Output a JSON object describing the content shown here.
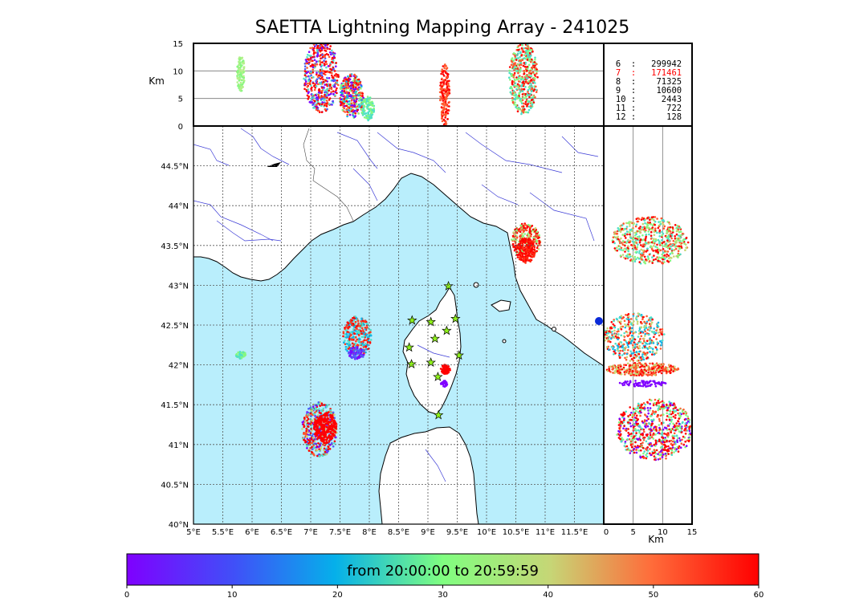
{
  "title": "SAETTA Lightning Mapping Array - 241025",
  "map": {
    "lon_ticks": [
      "5°E",
      "5.5°E",
      "6°E",
      "6.5°E",
      "7°E",
      "7.5°E",
      "8°E",
      "8.5°E",
      "9°E",
      "9.5°E",
      "10°E",
      "10.5°E",
      "11°E",
      "11.5°E"
    ],
    "lat_ticks": [
      "40°N",
      "40.5°N",
      "41°N",
      "41.5°N",
      "42°N",
      "42.5°N",
      "43°N",
      "43.5°N",
      "44°N",
      "44.5°N"
    ],
    "lon_range": [
      5,
      12
    ],
    "lat_range": [
      40,
      45
    ],
    "colors": {
      "sea": "#b9eefc",
      "land": "#ffffff",
      "rivers": "#3b3bd6",
      "coast": "#000000",
      "station": "#8ff21a"
    },
    "stations_icon": "star-icon"
  },
  "top_panel": {
    "ylabel": "Km",
    "yticks": [
      "0",
      "5",
      "10",
      "15"
    ],
    "yrange": [
      0,
      15
    ]
  },
  "right_panel": {
    "xlabel": "Km",
    "xticks": [
      "0",
      "5",
      "10",
      "15"
    ],
    "xrange": [
      0,
      15
    ]
  },
  "counts": [
    {
      "label": "6  :   299942",
      "color": "#000000"
    },
    {
      "label": "7  :   171461",
      "color": "#ff0000"
    },
    {
      "label": "8  :    71325",
      "color": "#000000"
    },
    {
      "label": "9  :    10600",
      "color": "#000000"
    },
    {
      "label": "10 :     2443",
      "color": "#000000"
    },
    {
      "label": "11 :      722",
      "color": "#000000"
    },
    {
      "label": "12 :      128",
      "color": "#000000"
    }
  ],
  "colorbar": {
    "label": "from 20:00:00 to 20:59:59",
    "ticks": [
      "0",
      "10",
      "20",
      "30",
      "40",
      "50",
      "60"
    ],
    "range": [
      0,
      60
    ],
    "colormap": "rainbow"
  }
}
